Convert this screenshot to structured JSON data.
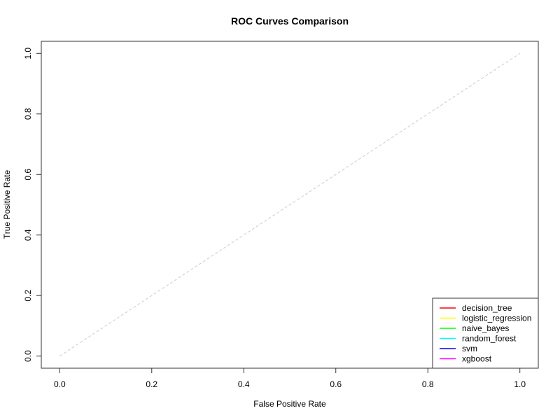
{
  "chart_data": {
    "type": "line",
    "title": "ROC Curves Comparison",
    "xlabel": "False Positive Rate",
    "ylabel": "True Positive Rate",
    "xlim": [
      -0.04,
      1.04
    ],
    "ylim": [
      -0.04,
      1.04
    ],
    "xticks": [
      "0.0",
      "0.2",
      "0.4",
      "0.6",
      "0.8",
      "1.0"
    ],
    "yticks": [
      "0.0",
      "0.2",
      "0.4",
      "0.6",
      "0.8",
      "1.0"
    ],
    "grid": false,
    "legend_position": "bottom-right",
    "reference_line": {
      "x": [
        0,
        1
      ],
      "y": [
        0,
        1
      ],
      "color": "#cccccc",
      "style": "dashed"
    },
    "series": [
      {
        "name": "decision_tree",
        "color": "#ff0000",
        "x": [],
        "y": []
      },
      {
        "name": "logistic_regression",
        "color": "#ffff00",
        "x": [],
        "y": []
      },
      {
        "name": "naive_bayes",
        "color": "#00ff00",
        "x": [],
        "y": []
      },
      {
        "name": "random_forest",
        "color": "#00ffff",
        "x": [],
        "y": []
      },
      {
        "name": "svm",
        "color": "#0000ff",
        "x": [],
        "y": []
      },
      {
        "name": "xgboost",
        "color": "#ff00ff",
        "x": [],
        "y": []
      }
    ]
  }
}
